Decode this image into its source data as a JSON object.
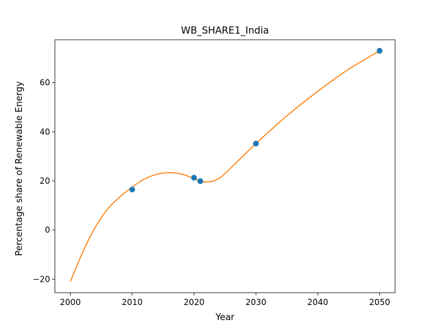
{
  "chart_data": {
    "type": "scatter",
    "title": "WB_SHARE1_India",
    "xlabel": "Year",
    "ylabel": "Percentage share of Renewable Energy",
    "xlim": [
      1997.5,
      2052.5
    ],
    "ylim": [
      -25.5,
      77.5
    ],
    "xticks": [
      2000,
      2010,
      2020,
      2030,
      2040,
      2050
    ],
    "yticks": [
      -20,
      0,
      20,
      40,
      60
    ],
    "ytick_labels": [
      "−20",
      "0",
      "20",
      "40",
      "60"
    ],
    "grid": false,
    "colors": {
      "points": "#1f77b4",
      "curve": "#ff7f0e"
    },
    "series": [
      {
        "kind": "points",
        "x": [
          2010,
          2020,
          2021,
          2030,
          2050
        ],
        "y": [
          16.5,
          21.3,
          19.9,
          35.2,
          73.0
        ]
      },
      {
        "kind": "line",
        "x": [
          2000,
          2002,
          2004,
          2006,
          2008,
          2010,
          2012,
          2014,
          2016,
          2018,
          2020,
          2021,
          2022,
          2023,
          2024,
          2025,
          2030,
          2035,
          2040,
          2045,
          2050
        ],
        "y": [
          -21,
          -9,
          1,
          8.5,
          13.5,
          17.5,
          20.8,
          22.7,
          23.4,
          22.8,
          21.0,
          19.9,
          19.6,
          19.9,
          21.0,
          23,
          35.2,
          46.5,
          56.5,
          65.5,
          73.0
        ]
      }
    ]
  }
}
